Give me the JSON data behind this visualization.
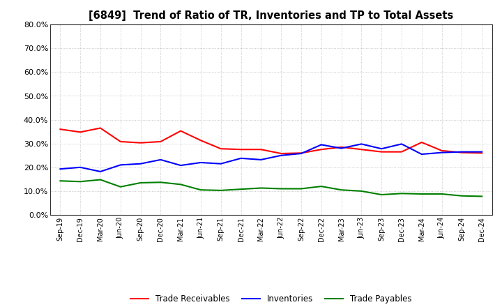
{
  "title": "[6849]  Trend of Ratio of TR, Inventories and TP to Total Assets",
  "x_labels": [
    "Sep-19",
    "Dec-19",
    "Mar-20",
    "Jun-20",
    "Sep-20",
    "Dec-20",
    "Mar-21",
    "Jun-21",
    "Sep-21",
    "Dec-21",
    "Mar-22",
    "Jun-22",
    "Sep-22",
    "Dec-22",
    "Mar-23",
    "Jun-23",
    "Sep-23",
    "Dec-23",
    "Mar-24",
    "Jun-24",
    "Sep-24",
    "Dec-24"
  ],
  "trade_receivables": [
    0.36,
    0.348,
    0.365,
    0.308,
    0.303,
    0.308,
    0.353,
    0.313,
    0.278,
    0.275,
    0.275,
    0.258,
    0.26,
    0.275,
    0.285,
    0.275,
    0.265,
    0.265,
    0.305,
    0.27,
    0.262,
    0.26
  ],
  "inventories": [
    0.193,
    0.2,
    0.182,
    0.21,
    0.215,
    0.232,
    0.208,
    0.22,
    0.215,
    0.238,
    0.232,
    0.25,
    0.258,
    0.295,
    0.28,
    0.298,
    0.278,
    0.298,
    0.255,
    0.262,
    0.265,
    0.265
  ],
  "trade_payables": [
    0.143,
    0.14,
    0.148,
    0.118,
    0.135,
    0.137,
    0.128,
    0.105,
    0.103,
    0.108,
    0.113,
    0.11,
    0.11,
    0.12,
    0.105,
    0.1,
    0.085,
    0.09,
    0.088,
    0.088,
    0.08,
    0.078
  ],
  "tr_color": "#FF0000",
  "inv_color": "#0000FF",
  "tp_color": "#008000",
  "ylim": [
    0.0,
    0.8
  ],
  "yticks": [
    0.0,
    0.1,
    0.2,
    0.3,
    0.4,
    0.5,
    0.6,
    0.7,
    0.8
  ],
  "background_color": "#FFFFFF",
  "grid_color": "#BBBBBB",
  "line_width": 1.5
}
